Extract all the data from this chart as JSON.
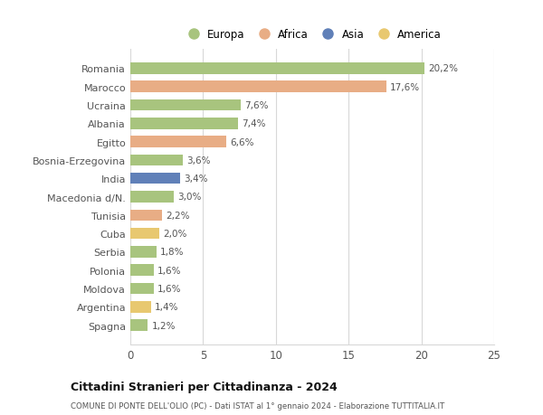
{
  "countries": [
    "Romania",
    "Marocco",
    "Ucraina",
    "Albania",
    "Egitto",
    "Bosnia-Erzegovina",
    "India",
    "Macedonia d/N.",
    "Tunisia",
    "Cuba",
    "Serbia",
    "Polonia",
    "Moldova",
    "Argentina",
    "Spagna"
  ],
  "values": [
    20.2,
    17.6,
    7.6,
    7.4,
    6.6,
    3.6,
    3.4,
    3.0,
    2.2,
    2.0,
    1.8,
    1.6,
    1.6,
    1.4,
    1.2
  ],
  "labels": [
    "20,2%",
    "17,6%",
    "7,6%",
    "7,4%",
    "6,6%",
    "3,6%",
    "3,4%",
    "3,0%",
    "2,2%",
    "2,0%",
    "1,8%",
    "1,6%",
    "1,6%",
    "1,4%",
    "1,2%"
  ],
  "continents": [
    "Europa",
    "Africa",
    "Europa",
    "Europa",
    "Africa",
    "Europa",
    "Asia",
    "Europa",
    "Africa",
    "America",
    "Europa",
    "Europa",
    "Europa",
    "America",
    "Europa"
  ],
  "colors": {
    "Europa": "#a8c47e",
    "Africa": "#e8ad85",
    "Asia": "#6080b8",
    "America": "#e8c870"
  },
  "legend_order": [
    "Europa",
    "Africa",
    "Asia",
    "America"
  ],
  "title": "Cittadini Stranieri per Cittadinanza - 2024",
  "subtitle": "COMUNE DI PONTE DELL'OLIO (PC) - Dati ISTAT al 1° gennaio 2024 - Elaborazione TUTTITALIA.IT",
  "xlim": [
    0,
    25
  ],
  "xticks": [
    0,
    5,
    10,
    15,
    20,
    25
  ],
  "background_color": "#ffffff",
  "grid_color": "#d8d8d8"
}
